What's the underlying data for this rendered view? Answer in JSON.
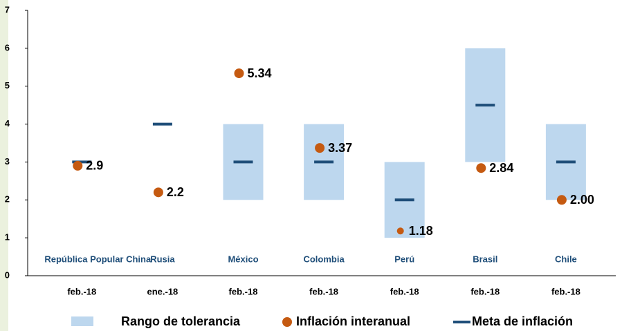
{
  "chart_data": {
    "type": "range-dot",
    "categories": [
      "República Popular China",
      "Rusia",
      "México",
      "Colombia",
      "Perú",
      "Brasil",
      "Chile"
    ],
    "dates": [
      "feb.-18",
      "ene.-18",
      "feb.-18",
      "feb.-18",
      "feb.-18",
      "feb.-18",
      "feb.-18"
    ],
    "series": [
      {
        "name": "Rango de tolerancia",
        "color": "#bdd7ee",
        "low": [
          null,
          null,
          2,
          2,
          1,
          3,
          2
        ],
        "high": [
          null,
          null,
          4,
          4,
          3,
          6,
          4
        ]
      },
      {
        "name": "Inflación interanual",
        "color": "#c55a11",
        "values": [
          2.9,
          2.2,
          5.34,
          3.37,
          1.18,
          2.84,
          2.0
        ],
        "value_labels": [
          "2.9",
          "2.2",
          "5.34",
          "3.37",
          "1.18",
          "2.84",
          "2.00"
        ]
      },
      {
        "name": "Meta de inflación",
        "color": "#1f4e79",
        "values": [
          3,
          4,
          3,
          3,
          2,
          4.5,
          3
        ]
      }
    ],
    "ylim": [
      0,
      7
    ],
    "yticks": [
      0,
      1,
      2,
      3,
      4,
      5,
      6,
      7
    ]
  }
}
